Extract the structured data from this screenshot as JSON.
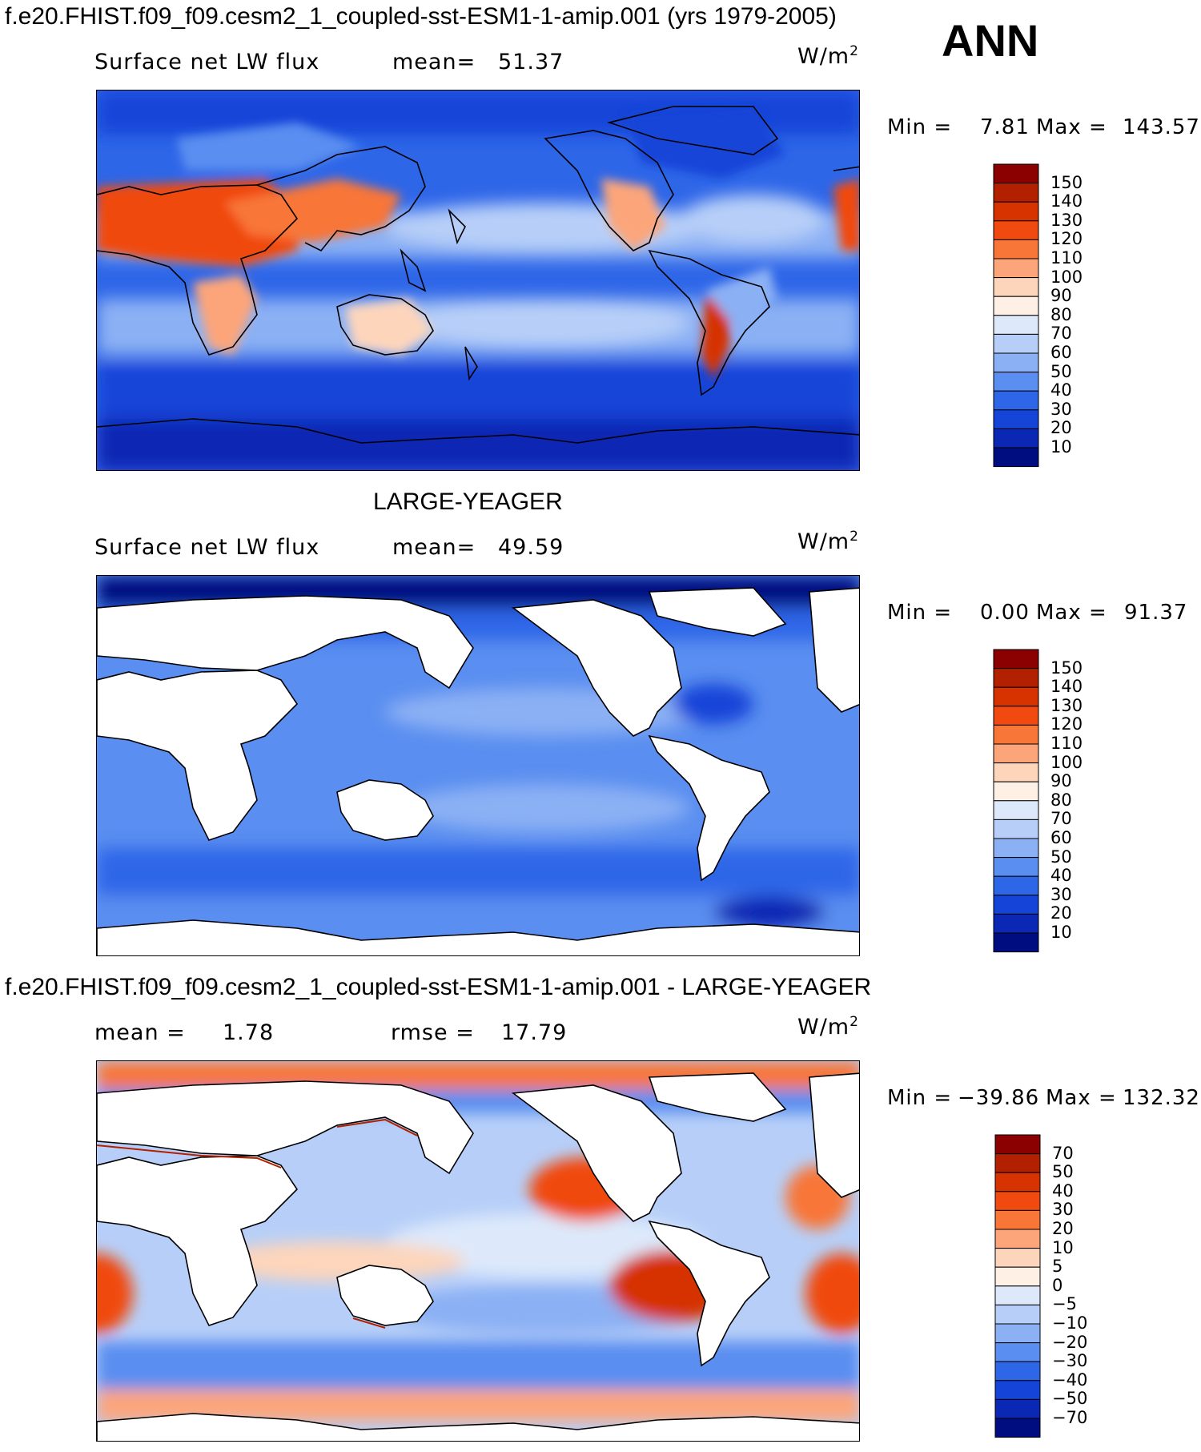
{
  "figure": {
    "title": "f.e20.FHIST.f09_f09.cesm2_1_coupled-sst-ESM1-1-amip.001 (yrs 1979-2005)",
    "season": "ANN",
    "middle_title": "LARGE-YEAGER",
    "diff_title": "f.e20.FHIST.f09_f09.cesm2_1_coupled-sst-ESM1-1-amip.001 - LARGE-YEAGER"
  },
  "panels": [
    {
      "id": "model",
      "variable": "Surface net LW flux",
      "stat1_label": "mean=",
      "stat1_value": "51.37",
      "stat2_label": "",
      "stat2_value": "",
      "units_base": "W/m",
      "units_exp": "2",
      "min_label": "Min =",
      "min_value": "7.81",
      "max_label": "Max =",
      "max_value": "143.57",
      "land_masked": false
    },
    {
      "id": "obs",
      "variable": "Surface net LW flux",
      "stat1_label": "mean=",
      "stat1_value": "49.59",
      "stat2_label": "",
      "stat2_value": "",
      "units_base": "W/m",
      "units_exp": "2",
      "min_label": "Min =",
      "min_value": "0.00",
      "max_label": "Max =",
      "max_value": "91.37",
      "land_masked": true
    },
    {
      "id": "diff",
      "variable": "",
      "stat1_label": "mean =",
      "stat1_value": "1.78",
      "stat2_label": "rmse =",
      "stat2_value": "17.79",
      "units_base": "W/m",
      "units_exp": "2",
      "min_label": "Min =",
      "min_value": "−39.86",
      "max_label": "Max =",
      "max_value": "132.32",
      "land_masked": true
    }
  ],
  "colorbars": {
    "abs": {
      "levels": [
        "150",
        "140",
        "130",
        "120",
        "110",
        "100",
        "90",
        "80",
        "70",
        "60",
        "50",
        "40",
        "30",
        "20",
        "10"
      ],
      "colors": [
        "#8b0000",
        "#b22000",
        "#d63300",
        "#f04a10",
        "#f87638",
        "#fca57a",
        "#fdd5bb",
        "#fff0e6",
        "#dde9fb",
        "#b7cff8",
        "#8bb0f4",
        "#5a8ef0",
        "#2e66e8",
        "#1444d8",
        "#0a28b4",
        "#000d80"
      ]
    },
    "diff": {
      "levels": [
        "70",
        "50",
        "40",
        "30",
        "20",
        "10",
        "5",
        "0",
        "−5",
        "−10",
        "−20",
        "−30",
        "−40",
        "−50",
        "−70"
      ],
      "colors": [
        "#8b0000",
        "#b22000",
        "#d63300",
        "#f04a10",
        "#f87638",
        "#fca57a",
        "#fdd5bb",
        "#fff0e6",
        "#dde9fb",
        "#b7cff8",
        "#8bb0f4",
        "#5a8ef0",
        "#2e66e8",
        "#1444d8",
        "#0a28b4",
        "#000d80"
      ]
    }
  },
  "map_data": {
    "projection": "cylindrical equidistant",
    "central_longitude": 180,
    "regions_model": [
      {
        "name": "sahara-arabia",
        "level": 120
      },
      {
        "name": "central-asia",
        "level": 110
      },
      {
        "name": "southwest-usa",
        "level": 110
      },
      {
        "name": "andes-south-america",
        "level": 130
      },
      {
        "name": "west-sahara-edge",
        "level": 130
      },
      {
        "name": "australia",
        "level": 90
      },
      {
        "name": "southern-africa",
        "level": 90
      },
      {
        "name": "subtropical-oceans",
        "level": 60
      },
      {
        "name": "southern-ocean",
        "level": 30
      },
      {
        "name": "antarctica-coast",
        "level": 20
      }
    ],
    "regions_diff": [
      {
        "name": "arctic-band",
        "level": 20
      },
      {
        "name": "antarctic-band",
        "level": 20
      },
      {
        "name": "northeast-pacific",
        "level": 30
      },
      {
        "name": "southeast-pacific",
        "level": 40
      },
      {
        "name": "southeast-atlantic",
        "level": 30
      },
      {
        "name": "tropical-pacific",
        "level": -10
      },
      {
        "name": "southern-ocean",
        "level": -20
      }
    ]
  }
}
